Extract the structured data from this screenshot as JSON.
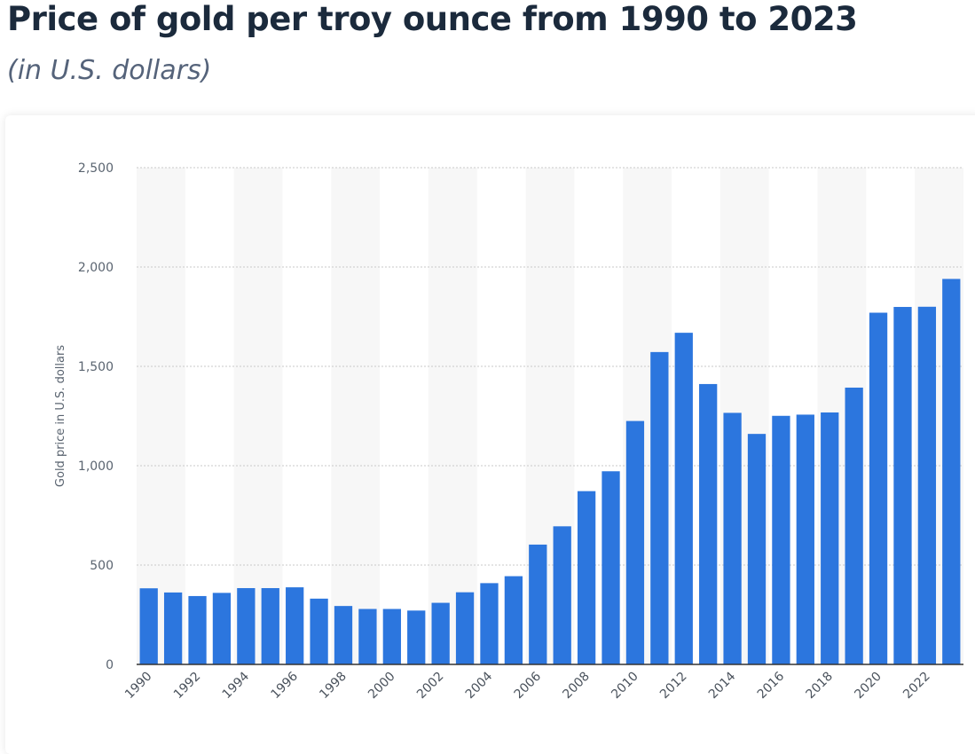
{
  "header": {
    "title": "Price of gold per troy ounce from 1990 to 2023",
    "subtitle": "(in U.S. dollars)"
  },
  "colors": {
    "bar": "#2c76de",
    "band": "#f7f7f7",
    "grid": "#c8c8c8",
    "axis": "#333333"
  },
  "chart_data": {
    "type": "bar",
    "title": "Price of gold per troy ounce from 1990 to 2023",
    "subtitle": "(in U.S. dollars)",
    "xlabel": "",
    "ylabel": "Gold price in U.S. dollars",
    "ylim": [
      0,
      2500
    ],
    "yticks": [
      0,
      500,
      1000,
      1500,
      2000,
      2500
    ],
    "ytick_labels": [
      "0",
      "500",
      "1,000",
      "1,500",
      "2,000",
      "2,500"
    ],
    "grid": true,
    "categories": [
      "1990",
      "1991",
      "1992",
      "1993",
      "1994",
      "1995",
      "1996",
      "1997",
      "1998",
      "1999",
      "2000",
      "2001",
      "2002",
      "2003",
      "2004",
      "2005",
      "2006",
      "2007",
      "2008",
      "2009",
      "2010",
      "2011",
      "2012",
      "2013",
      "2014",
      "2015",
      "2016",
      "2017",
      "2018",
      "2019",
      "2020",
      "2021",
      "2022",
      "2023"
    ],
    "xtick_labels": [
      "1990",
      "",
      "1992",
      "",
      "1994",
      "",
      "1996",
      "",
      "1998",
      "",
      "2000",
      "",
      "2002",
      "",
      "2004",
      "",
      "2006",
      "",
      "2008",
      "",
      "2010",
      "",
      "2012",
      "",
      "2014",
      "",
      "2016",
      "",
      "2018",
      "",
      "2020",
      "",
      "2022",
      ""
    ],
    "values": [
      383,
      362,
      344,
      360,
      384,
      384,
      388,
      331,
      294,
      279,
      279,
      271,
      310,
      363,
      409,
      444,
      603,
      695,
      872,
      972,
      1225,
      1572,
      1669,
      1411,
      1266,
      1160,
      1251,
      1257,
      1268,
      1393,
      1770,
      1799,
      1800,
      1940
    ]
  }
}
